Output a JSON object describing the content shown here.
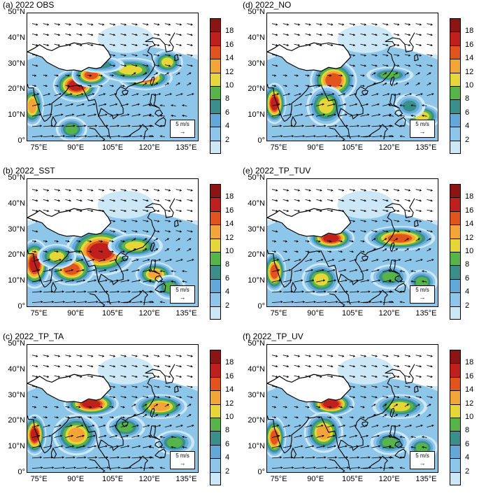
{
  "palette": [
    "#ffffff",
    "#cce8f7",
    "#8ec6ea",
    "#62a8d8",
    "#3a8f8a",
    "#56b44b",
    "#e6d63a",
    "#f4a537",
    "#e2541e",
    "#c0201d",
    "#8b1414"
  ],
  "colorbar": {
    "labels": [
      "18",
      "16",
      "14",
      "12",
      "10",
      "8",
      "6",
      "4",
      "2"
    ]
  },
  "ylabels": [
    "50°N",
    "40°N",
    "30°N",
    "20°N",
    "10°N",
    "0°"
  ],
  "xlabels": [
    "75°E",
    "90°E",
    "105°E",
    "120°E",
    "135°E"
  ],
  "reference_vector": {
    "label": "5 m/s",
    "arrow": "→"
  },
  "panels": [
    {
      "id": "a",
      "title": "(a) 2022 OBS",
      "blobs": [
        [
          90,
          22,
          6,
          4,
          18
        ],
        [
          96,
          26,
          5,
          3,
          16
        ],
        [
          118,
          25,
          7,
          3,
          16
        ],
        [
          112,
          28,
          8,
          3,
          12
        ],
        [
          72,
          14,
          3,
          5,
          14
        ],
        [
          88,
          5,
          4,
          3,
          10
        ],
        [
          127,
          31,
          4,
          3,
          12
        ],
        [
          100,
          30,
          6,
          2,
          8
        ]
      ]
    },
    {
      "id": "d",
      "title": "(d) 2022_NO",
      "blobs": [
        [
          73,
          15,
          3,
          5,
          18
        ],
        [
          97,
          24,
          6,
          5,
          16
        ],
        [
          94,
          14,
          5,
          5,
          12
        ],
        [
          120,
          26,
          6,
          2,
          10
        ],
        [
          133,
          10,
          5,
          3,
          12
        ],
        [
          128,
          14,
          4,
          3,
          8
        ]
      ]
    },
    {
      "id": "b",
      "title": "(b) 2022_SST",
      "blobs": [
        [
          73,
          17,
          4,
          6,
          18
        ],
        [
          100,
          22,
          9,
          6,
          18
        ],
        [
          88,
          15,
          6,
          4,
          16
        ],
        [
          114,
          24,
          7,
          3,
          12
        ],
        [
          122,
          13,
          5,
          3,
          14
        ],
        [
          128,
          8,
          4,
          3,
          10
        ],
        [
          82,
          20,
          5,
          3,
          12
        ]
      ]
    },
    {
      "id": "e",
      "title": "(e) 2022_TP_TUV",
      "blobs": [
        [
          96,
          27,
          6,
          3,
          18
        ],
        [
          73,
          14,
          3,
          5,
          16
        ],
        [
          124,
          27,
          9,
          3,
          16
        ],
        [
          92,
          11,
          5,
          4,
          12
        ],
        [
          120,
          12,
          5,
          3,
          10
        ],
        [
          133,
          10,
          4,
          3,
          10
        ]
      ]
    },
    {
      "id": "c",
      "title": "(c) 2022_TP_TA",
      "blobs": [
        [
          96,
          27,
          7,
          3,
          18
        ],
        [
          73,
          15,
          3,
          5,
          18
        ],
        [
          90,
          15,
          6,
          5,
          14
        ],
        [
          124,
          26,
          7,
          3,
          14
        ],
        [
          110,
          18,
          5,
          3,
          10
        ],
        [
          130,
          12,
          5,
          3,
          10
        ]
      ]
    },
    {
      "id": "f",
      "title": "(f) 2022_TP_UV",
      "blobs": [
        [
          96,
          27,
          6,
          3,
          18
        ],
        [
          73,
          14,
          3,
          5,
          16
        ],
        [
          93,
          16,
          5,
          5,
          14
        ],
        [
          124,
          26,
          7,
          3,
          12
        ],
        [
          120,
          12,
          5,
          3,
          10
        ],
        [
          133,
          10,
          4,
          3,
          10
        ]
      ]
    }
  ],
  "map": {
    "lon_range": [
      70,
      140
    ],
    "lat_range": [
      0,
      50
    ]
  }
}
